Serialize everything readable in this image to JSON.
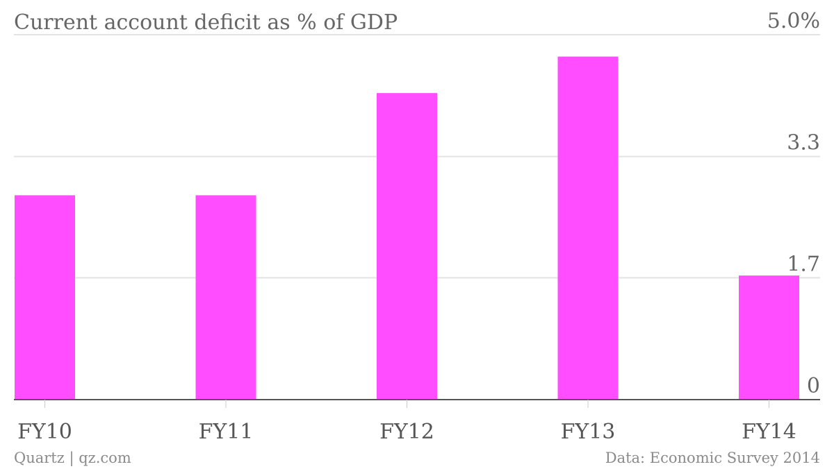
{
  "chart_data": {
    "type": "bar",
    "title": "Current account deficit as % of GDP",
    "categories": [
      "FY10",
      "FY11",
      "FY12",
      "FY13",
      "FY14"
    ],
    "values": [
      2.8,
      2.8,
      4.2,
      4.7,
      1.7
    ],
    "ylim": [
      0,
      5.0
    ],
    "yticks": [
      {
        "value": 0,
        "label": "0"
      },
      {
        "value": 1.67,
        "label": "1.7"
      },
      {
        "value": 3.33,
        "label": "3.3"
      },
      {
        "value": 5.0,
        "label": "5.0%"
      }
    ],
    "y_axis_position": "right",
    "grid": true,
    "legend": "none",
    "bar_color": "#ff4dff"
  },
  "footer": {
    "source_left": "Quartz | qz.com",
    "source_right": "Data: Economic Survey 2014"
  }
}
